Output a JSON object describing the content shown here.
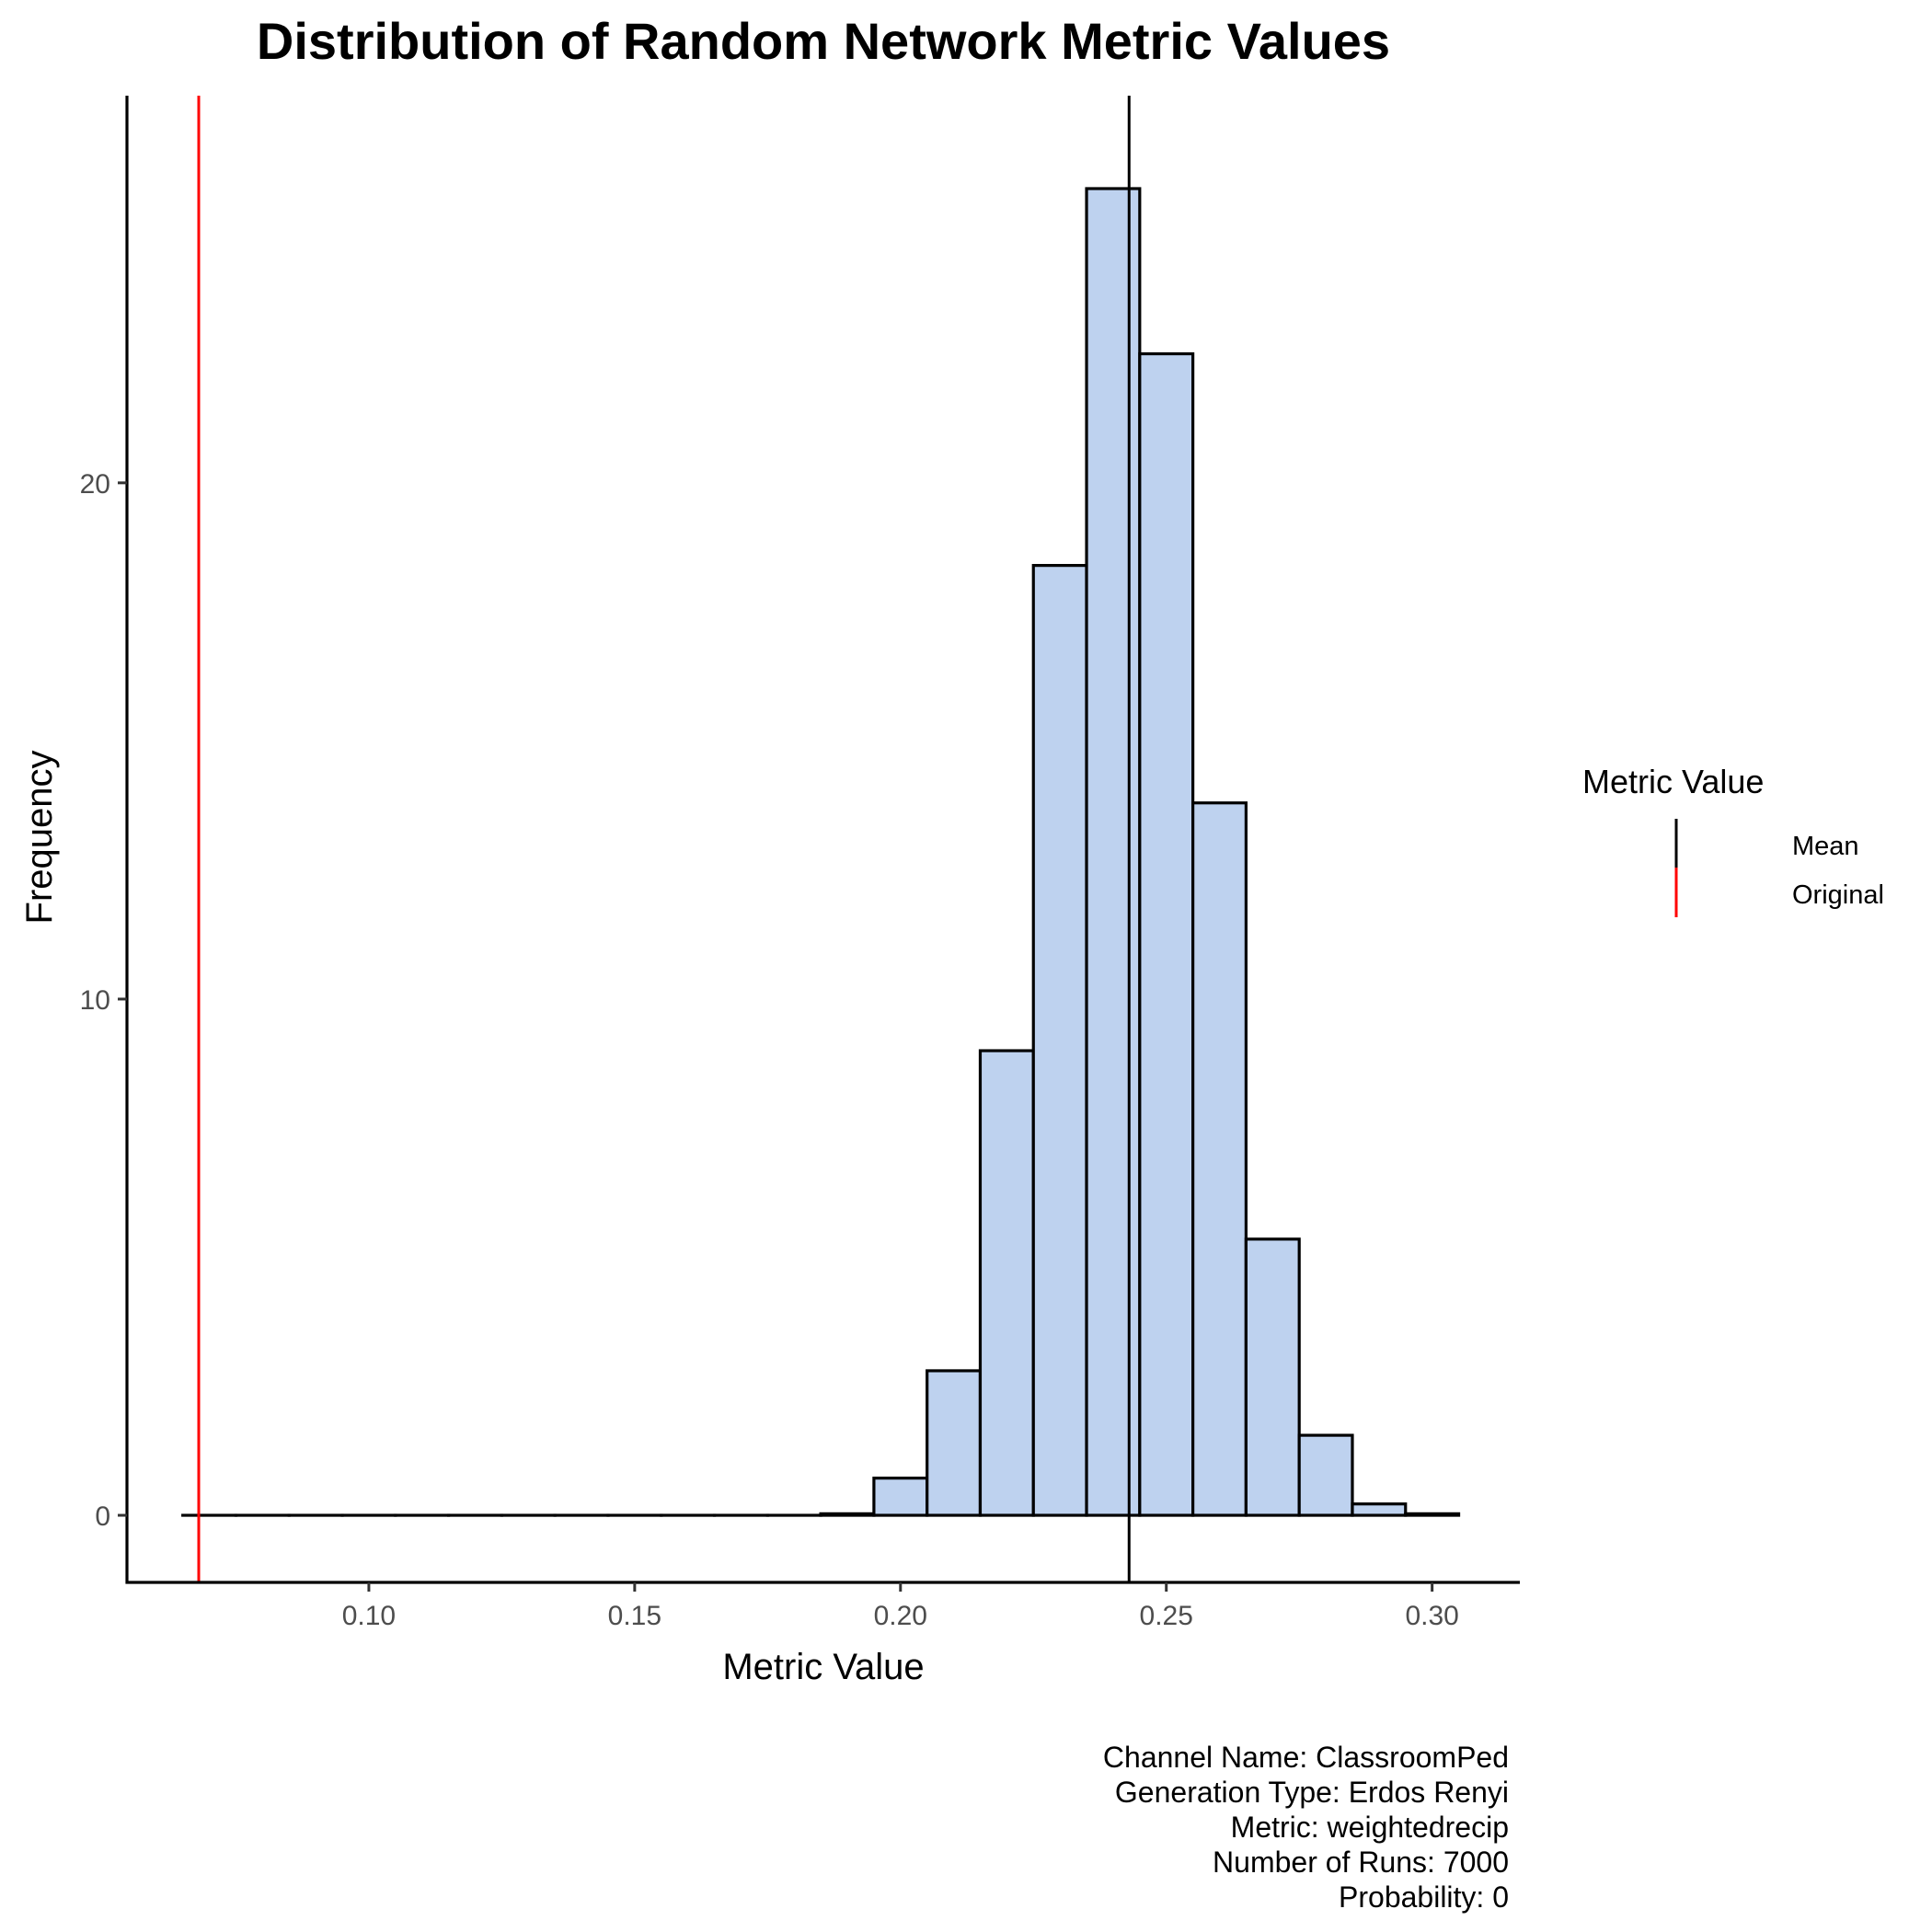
{
  "chart_data": {
    "type": "bar",
    "title": "Distribution of Random Network Metric Values",
    "xlabel": "Metric Value",
    "ylabel": "Frequency",
    "xlim": [
      0.0545,
      0.3165
    ],
    "ylim": [
      -1.3,
      27.5
    ],
    "x_ticks": [
      {
        "value": 0.1,
        "label": "0.10"
      },
      {
        "value": 0.15,
        "label": "0.15"
      },
      {
        "value": 0.2,
        "label": "0.20"
      },
      {
        "value": 0.25,
        "label": "0.25"
      },
      {
        "value": 0.3,
        "label": "0.30"
      }
    ],
    "y_ticks": [
      {
        "value": 0,
        "label": "0"
      },
      {
        "value": 10,
        "label": "10"
      },
      {
        "value": 20,
        "label": "20"
      }
    ],
    "bin_width": 0.01,
    "bins": [
      {
        "x0": 0.065,
        "x1": 0.075,
        "count": 0
      },
      {
        "x0": 0.075,
        "x1": 0.085,
        "count": 0
      },
      {
        "x0": 0.085,
        "x1": 0.095,
        "count": 0
      },
      {
        "x0": 0.095,
        "x1": 0.105,
        "count": 0
      },
      {
        "x0": 0.105,
        "x1": 0.115,
        "count": 0
      },
      {
        "x0": 0.115,
        "x1": 0.125,
        "count": 0
      },
      {
        "x0": 0.125,
        "x1": 0.135,
        "count": 0
      },
      {
        "x0": 0.135,
        "x1": 0.145,
        "count": 0
      },
      {
        "x0": 0.145,
        "x1": 0.155,
        "count": 0
      },
      {
        "x0": 0.155,
        "x1": 0.165,
        "count": 0
      },
      {
        "x0": 0.165,
        "x1": 0.175,
        "count": 0
      },
      {
        "x0": 0.175,
        "x1": 0.185,
        "count": 0
      },
      {
        "x0": 0.185,
        "x1": 0.195,
        "count": 0.03
      },
      {
        "x0": 0.195,
        "x1": 0.205,
        "count": 0.72
      },
      {
        "x0": 0.205,
        "x1": 0.215,
        "count": 2.8
      },
      {
        "x0": 0.215,
        "x1": 0.225,
        "count": 9.0
      },
      {
        "x0": 0.225,
        "x1": 0.235,
        "count": 18.4
      },
      {
        "x0": 0.235,
        "x1": 0.245,
        "count": 25.7
      },
      {
        "x0": 0.245,
        "x1": 0.255,
        "count": 22.5
      },
      {
        "x0": 0.255,
        "x1": 0.265,
        "count": 13.8
      },
      {
        "x0": 0.265,
        "x1": 0.275,
        "count": 5.35
      },
      {
        "x0": 0.275,
        "x1": 0.285,
        "count": 1.55
      },
      {
        "x0": 0.285,
        "x1": 0.295,
        "count": 0.22
      },
      {
        "x0": 0.295,
        "x1": 0.305,
        "count": 0.03
      }
    ],
    "bar_fill": "#bed2ef",
    "bar_stroke": "#000000",
    "reference_lines": [
      {
        "name": "Mean",
        "value": 0.243,
        "color": "#000000"
      },
      {
        "name": "Original",
        "value": 0.068,
        "color": "#ff0000"
      }
    ],
    "legend": {
      "title": "Metric Value",
      "placement": "right",
      "entries": [
        {
          "label": "Mean",
          "color": "#000000"
        },
        {
          "label": "Original",
          "color": "#ff0000"
        }
      ]
    },
    "caption_lines": [
      "Channel Name: ClassroomPed",
      "Generation Type: Erdos Renyi",
      "Metric:  weightedrecip",
      "Number of Runs: 7000",
      "Probability:  0"
    ]
  }
}
